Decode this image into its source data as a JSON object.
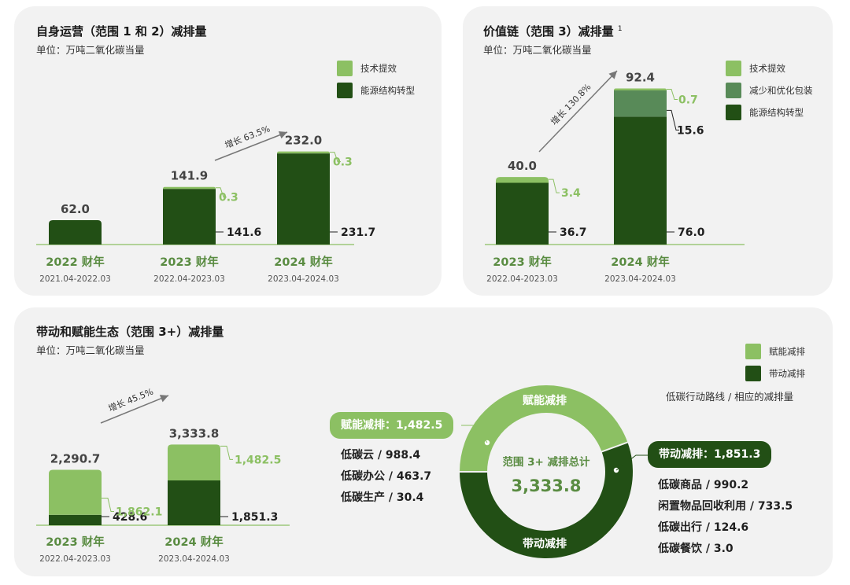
{
  "colors": {
    "light": "#8cc063",
    "mid": "#588a58",
    "dark": "#224f15",
    "cat": "#5a8c42",
    "line": "#8cc063",
    "arrow": "#777777"
  },
  "panel1": {
    "title": "自身运营（范围 1 和 2）减排量",
    "unit": "单位：万吨二氧化碳当量",
    "legend": [
      {
        "label": "技术提效",
        "color": "#8cc063"
      },
      {
        "label": "能源结构转型",
        "color": "#224f15"
      }
    ],
    "growth": "增长 63.5%"
  },
  "panel2": {
    "title": "价值链（范围 3）减排量",
    "title_sup": "1",
    "unit": "单位：万吨二氧化碳当量",
    "legend": [
      {
        "label": "技术提效",
        "color": "#8cc063"
      },
      {
        "label": "减少和优化包装",
        "color": "#588a58"
      },
      {
        "label": "能源结构转型",
        "color": "#224f15"
      }
    ],
    "growth": "增长 130.8%"
  },
  "panel3": {
    "title": "带动和赋能生态（范围 3+）减排量",
    "unit": "单位：万吨二氧化碳当量",
    "legend": [
      {
        "label": "赋能减排",
        "color": "#8cc063"
      },
      {
        "label": "带动减排",
        "color": "#224f15"
      }
    ],
    "growth": "增长 45.5%",
    "route_note": "低碳行动路线 / 相应的减排量",
    "donut": {
      "center_line1": "范围 3+ 减排总计",
      "center_line2": "3,333.8",
      "seg_light_label": "赋能减排",
      "seg_dark_label": "带动减排"
    },
    "left_pill": "赋能减排：1,482.5",
    "left_items": [
      "低碳云 / 988.4",
      "低碳办公 / 463.7",
      "低碳生产 / 30.4"
    ],
    "right_pill": "带动减排：1,851.3",
    "right_items": [
      "低碳商品 / 990.2",
      "闲置物品回收利用 / 733.5",
      "低碳出行 / 124.6",
      "低碳餐饮 / 3.0"
    ]
  },
  "chart_data": [
    {
      "type": "bar",
      "stacked": true,
      "categories": [
        "2022 财年",
        "2023 财年",
        "2024 财年"
      ],
      "periods": [
        "2021.04-2022.03",
        "2022.04-2023.03",
        "2023.04-2024.03"
      ],
      "totals": [
        "62.0",
        "141.9",
        "232.0"
      ],
      "series": [
        {
          "name": "能源结构转型",
          "values": [
            62.0,
            141.6,
            231.7
          ],
          "labels": [
            "",
            "141.6",
            "231.7"
          ]
        },
        {
          "name": "技术提效",
          "values": [
            0,
            0.3,
            0.3
          ],
          "labels": [
            "",
            "0.3",
            "0.3"
          ]
        }
      ]
    },
    {
      "type": "bar",
      "stacked": true,
      "categories": [
        "2023 财年",
        "2024 财年"
      ],
      "periods": [
        "2022.04-2023.03",
        "2023.04-2024.03"
      ],
      "totals": [
        "40.0",
        "92.4"
      ],
      "series": [
        {
          "name": "能源结构转型",
          "values": [
            36.7,
            76.0
          ],
          "labels": [
            "36.7",
            "76.0"
          ]
        },
        {
          "name": "减少和优化包装",
          "values": [
            0,
            15.6
          ],
          "labels": [
            "",
            "15.6"
          ]
        },
        {
          "name": "技术提效",
          "values": [
            3.4,
            0.7
          ],
          "labels": [
            "3.4",
            "0.7"
          ]
        }
      ]
    },
    {
      "type": "bar",
      "stacked": true,
      "categories": [
        "2023 财年",
        "2024 财年"
      ],
      "periods": [
        "2022.04-2023.03",
        "2023.04-2024.03"
      ],
      "totals": [
        "2,290.7",
        "3,333.8"
      ],
      "series": [
        {
          "name": "带动减排",
          "values": [
            428.6,
            1851.3
          ],
          "labels": [
            "428.6",
            "1,851.3"
          ]
        },
        {
          "name": "赋能减排",
          "values": [
            1862.1,
            1482.5
          ],
          "labels": [
            "1,862.1",
            "1,482.5"
          ]
        }
      ]
    },
    {
      "type": "pie",
      "donut": true,
      "categories": [
        "赋能减排",
        "带动减排"
      ],
      "values": [
        1482.5,
        1851.3
      ]
    }
  ]
}
